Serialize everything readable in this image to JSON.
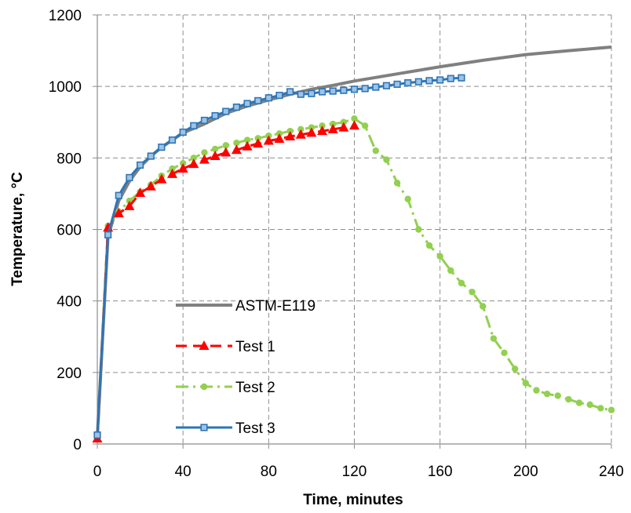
{
  "chart_data": {
    "type": "line",
    "title": "",
    "xlabel": "Time, minutes",
    "ylabel": "Temperature, °C",
    "xlim": [
      0,
      240
    ],
    "ylim": [
      0,
      1200
    ],
    "xticks": [
      0,
      40,
      80,
      120,
      160,
      200,
      240
    ],
    "yticks": [
      0,
      200,
      400,
      600,
      800,
      1000,
      1200
    ],
    "xtick_labels": [
      "0",
      "40",
      "80",
      "120",
      "160",
      "200",
      "240"
    ],
    "ytick_labels": [
      "0",
      "200",
      "400",
      "600",
      "800",
      "1000",
      "1200"
    ],
    "grid": true,
    "legend_position": "lower-left",
    "series": [
      {
        "name": "ASTM-E119",
        "color": "#808080",
        "style": "solid",
        "marker": "none",
        "x": [
          0,
          5,
          10,
          15,
          20,
          25,
          30,
          40,
          50,
          60,
          70,
          80,
          90,
          100,
          110,
          120,
          140,
          160,
          180,
          200,
          220,
          240
        ],
        "y": [
          20,
          580,
          680,
          735,
          775,
          805,
          830,
          870,
          895,
          925,
          945,
          962,
          978,
          992,
          1003,
          1015,
          1035,
          1055,
          1073,
          1089,
          1100,
          1110
        ]
      },
      {
        "name": "Test 1",
        "color": "#ff0000",
        "style": "dashed",
        "marker": "triangle",
        "x": [
          0,
          5,
          10,
          15,
          20,
          25,
          30,
          35,
          40,
          45,
          50,
          55,
          60,
          65,
          70,
          75,
          80,
          85,
          90,
          95,
          100,
          105,
          110,
          115,
          120
        ],
        "y": [
          15,
          605,
          645,
          665,
          702,
          720,
          740,
          755,
          770,
          783,
          795,
          805,
          815,
          822,
          832,
          840,
          848,
          853,
          860,
          865,
          870,
          875,
          880,
          885,
          890
        ]
      },
      {
        "name": "Test 2",
        "color": "#92d050",
        "style": "dashdot",
        "marker": "circle",
        "x": [
          0,
          5,
          10,
          15,
          20,
          25,
          30,
          35,
          40,
          45,
          50,
          55,
          60,
          65,
          70,
          75,
          80,
          85,
          90,
          95,
          100,
          105,
          110,
          115,
          120,
          125,
          130,
          135,
          140,
          145,
          150,
          155,
          160,
          165,
          170,
          175,
          180,
          185,
          190,
          195,
          200,
          205,
          210,
          215,
          220,
          225,
          230,
          235,
          240
        ],
        "y": [
          20,
          610,
          650,
          680,
          705,
          725,
          750,
          770,
          785,
          800,
          815,
          825,
          835,
          842,
          850,
          855,
          862,
          868,
          875,
          880,
          885,
          890,
          895,
          900,
          910,
          890,
          820,
          795,
          730,
          685,
          600,
          555,
          525,
          485,
          450,
          425,
          385,
          295,
          255,
          210,
          170,
          150,
          140,
          135,
          125,
          115,
          110,
          100,
          95
        ]
      },
      {
        "name": "Test 3",
        "color": "#2e75b6",
        "style": "solid",
        "marker": "square",
        "x": [
          0,
          5,
          10,
          15,
          20,
          25,
          30,
          35,
          40,
          45,
          50,
          55,
          60,
          65,
          70,
          75,
          80,
          85,
          90,
          95,
          100,
          105,
          110,
          115,
          120,
          125,
          130,
          135,
          140,
          145,
          150,
          155,
          160,
          165,
          170
        ],
        "y": [
          25,
          585,
          695,
          745,
          780,
          805,
          830,
          850,
          872,
          890,
          905,
          918,
          930,
          942,
          952,
          960,
          968,
          975,
          985,
          978,
          980,
          985,
          987,
          989,
          992,
          994,
          998,
          1002,
          1006,
          1010,
          1013,
          1016,
          1018,
          1022,
          1024
        ]
      }
    ]
  }
}
